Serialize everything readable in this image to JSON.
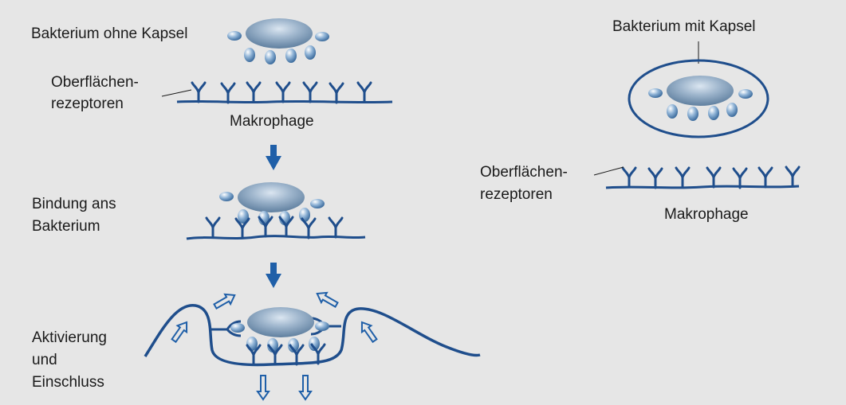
{
  "labels": {
    "no_capsule": "Bakterium ohne Kapsel",
    "receptors_left_1": "Oberflächen-",
    "receptors_left_2": "rezeptoren",
    "macrophage_left": "Makrophage",
    "binding_1": "Bindung ans",
    "binding_2": "Bakterium",
    "activation_1": "Aktivierung",
    "activation_2": "und",
    "activation_3": "Einschluss",
    "with_capsule": "Bakterium mit Kapsel",
    "receptors_right_1": "Oberflächen-",
    "receptors_right_2": "rezeptoren",
    "macrophage_right": "Makrophage"
  },
  "colors": {
    "background": "#e6e6e6",
    "membrane": "#1f4e8c",
    "bacterium_body": "#8fa9c4",
    "bacterium_highlight": "#d5e2ef",
    "arrow": "#1f5fa8",
    "text": "#1a1a1a"
  }
}
